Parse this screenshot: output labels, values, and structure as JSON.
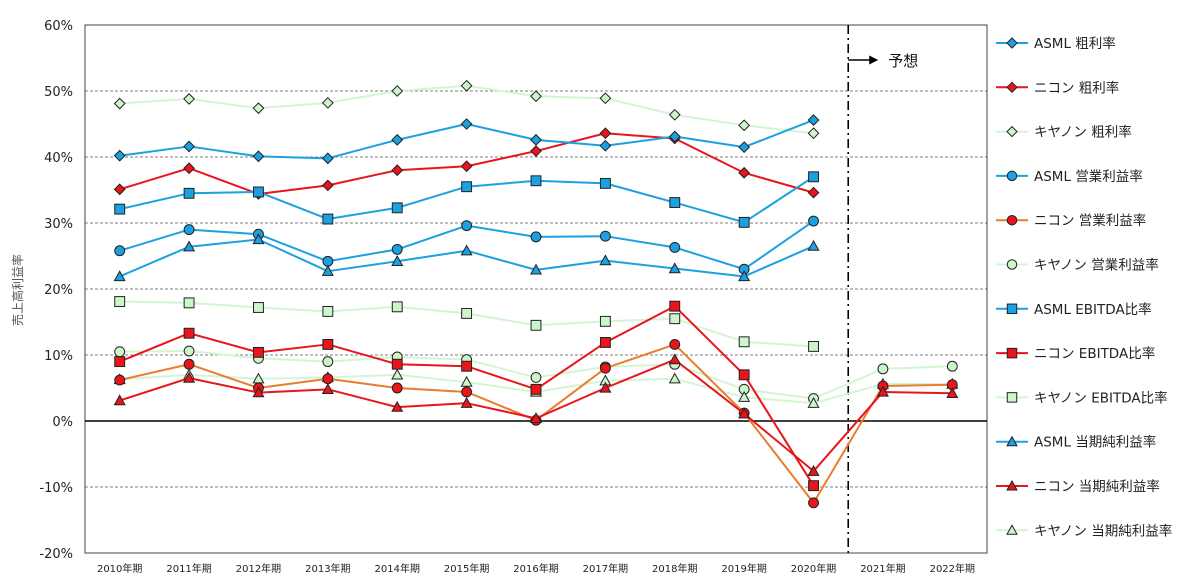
{
  "chart_data": {
    "type": "line",
    "ylabel": "売上高利益率",
    "ylim": [
      -20,
      60
    ],
    "ytick_values": [
      -20,
      -10,
      0,
      10,
      20,
      30,
      40,
      50,
      60
    ],
    "ytick_labels": [
      "-20%",
      "-10%",
      "0%",
      "10%",
      "20%",
      "30%",
      "40%",
      "50%",
      "60%"
    ],
    "categories": [
      "2010年期",
      "2011年期",
      "2012年期",
      "2013年期",
      "2014年期",
      "2015年期",
      "2016年期",
      "2017年期",
      "2018年期",
      "2019年期",
      "2020年期",
      "2021年期",
      "2022年期"
    ],
    "forecast_start_index": 10.5,
    "annotation": "予想",
    "grid": "horizontal-dashed",
    "legend_position": "right",
    "colors": {
      "asml": "#1ba1e2",
      "nikon": "#e8151b",
      "canon": "#c8f0c8",
      "nikon_op": "#e87d2e"
    },
    "series": [
      {
        "name": "ASML 粗利率",
        "color": "#1ba1e2",
        "line": "#1ba1e2",
        "marker": "diamond",
        "fill": "#1ba1e2",
        "values": [
          40.2,
          41.6,
          40.1,
          39.8,
          42.6,
          45.0,
          42.6,
          41.7,
          43.1,
          41.5,
          45.6,
          null,
          null
        ]
      },
      {
        "name": "ニコン 粗利率",
        "color": "#e8151b",
        "line": "#e8151b",
        "marker": "diamond",
        "fill": "#e8151b",
        "values": [
          35.1,
          38.3,
          34.4,
          35.7,
          38.0,
          38.6,
          40.9,
          43.6,
          42.8,
          37.6,
          34.6,
          null,
          null
        ]
      },
      {
        "name": "キヤノン 粗利率",
        "color": "#c8f0c8",
        "line": "#d4f5d4",
        "marker": "diamond",
        "fill": "#ccf5cc",
        "values": [
          48.1,
          48.8,
          47.4,
          48.2,
          50.0,
          50.8,
          49.2,
          48.9,
          46.4,
          44.8,
          43.6,
          null,
          null
        ]
      },
      {
        "name": "ASML 営業利益率",
        "color": "#1ba1e2",
        "line": "#1ba1e2",
        "marker": "circle",
        "fill": "#1ba1e2",
        "values": [
          25.8,
          29.0,
          28.3,
          24.2,
          26.0,
          29.6,
          27.9,
          28.0,
          26.3,
          23.0,
          30.3,
          null,
          null
        ]
      },
      {
        "name": "ニコン 営業利益率",
        "color": "#e87d2e",
        "line": "#e87d2e",
        "marker": "circle",
        "fill": "#e8151b",
        "values": [
          6.2,
          8.6,
          5.0,
          6.4,
          5.0,
          4.4,
          0.1,
          8.0,
          11.6,
          1.2,
          -12.4,
          5.3,
          5.5
        ]
      },
      {
        "name": "キヤノン 営業利益率",
        "color": "#c8f0c8",
        "line": "#d4f5d4",
        "marker": "circle",
        "fill": "#ccf5cc",
        "values": [
          10.5,
          10.6,
          9.5,
          9.0,
          9.7,
          9.3,
          6.6,
          8.2,
          8.6,
          4.8,
          3.4,
          7.9,
          8.3
        ]
      },
      {
        "name": "ASML EBITDA比率",
        "color": "#1ba1e2",
        "line": "#1ba1e2",
        "marker": "square",
        "fill": "#1ba1e2",
        "values": [
          32.1,
          34.5,
          34.7,
          30.6,
          32.3,
          35.5,
          36.4,
          36.0,
          33.1,
          30.1,
          37.0,
          null,
          null
        ]
      },
      {
        "name": "ニコン EBITDA比率",
        "color": "#e8151b",
        "line": "#e8151b",
        "marker": "square",
        "fill": "#e8151b",
        "values": [
          9.0,
          13.3,
          10.4,
          11.6,
          8.6,
          8.3,
          4.8,
          11.9,
          17.4,
          7.0,
          -9.8,
          null,
          null
        ]
      },
      {
        "name": "キヤノン EBITDA比率",
        "color": "#c8f0c8",
        "line": "#d4f5d4",
        "marker": "square",
        "fill": "#ccf5cc",
        "values": [
          18.1,
          17.9,
          17.2,
          16.6,
          17.3,
          16.3,
          14.5,
          15.1,
          15.5,
          12.0,
          11.3,
          null,
          null
        ]
      },
      {
        "name": "ASML 当期純利益率",
        "color": "#1ba1e2",
        "line": "#1ba1e2",
        "marker": "triangle",
        "fill": "#1ba1e2",
        "values": [
          21.9,
          26.4,
          27.5,
          22.7,
          24.2,
          25.8,
          22.9,
          24.3,
          23.1,
          21.9,
          26.5,
          null,
          null
        ]
      },
      {
        "name": "ニコン 当期純利益率",
        "color": "#e8151b",
        "line": "#e8151b",
        "marker": "triangle",
        "fill": "#e8151b",
        "values": [
          3.1,
          6.5,
          4.3,
          4.8,
          2.1,
          2.7,
          0.4,
          5.0,
          9.3,
          1.1,
          -7.6,
          4.4,
          4.2
        ]
      },
      {
        "name": "キヤノン 当期純利益率",
        "color": "#c8f0c8",
        "line": "#d4f5d4",
        "marker": "triangle",
        "fill": "#ccf5cc",
        "values": [
          6.3,
          7.0,
          6.4,
          6.6,
          7.0,
          5.9,
          4.4,
          6.1,
          6.4,
          3.6,
          2.7,
          5.6,
          5.6
        ]
      }
    ]
  }
}
